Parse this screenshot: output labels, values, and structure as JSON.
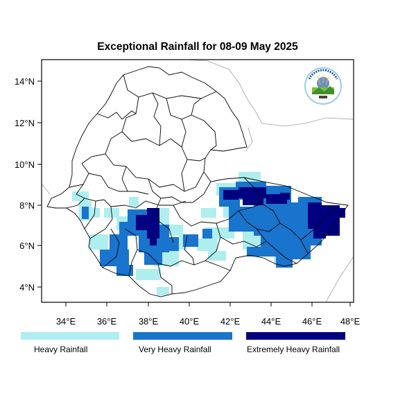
{
  "map": {
    "title": "Exceptional Rainfall for 08-09 May 2025",
    "lon_labels": [
      "34°E",
      "36°E",
      "38°E",
      "40°E",
      "42°E",
      "44°E",
      "46°E",
      "48°E"
    ],
    "lat_labels": [
      "14°N",
      "12°N",
      "10°N",
      "8°N",
      "6°N",
      "4°N"
    ],
    "legend": [
      {
        "label": "Heavy Rainfall",
        "color": "#afeeee"
      },
      {
        "label": "Very Heavy Rainfall",
        "color": "#1874cd"
      },
      {
        "label": "Extremely Heavy Rainfall",
        "color": "#000080"
      }
    ],
    "logo_icon": "ethiopian-meteorology-institute-logo"
  }
}
